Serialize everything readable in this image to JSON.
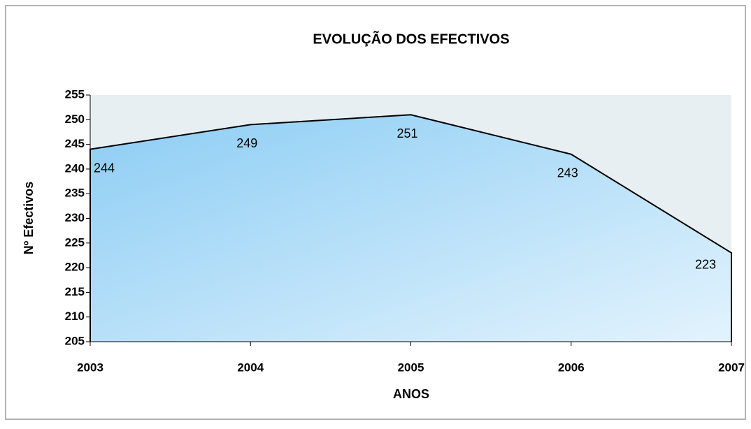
{
  "chart_data": {
    "type": "area",
    "title": "EVOLUÇÃO DOS EFECTIVOS",
    "x_label": "ANOS",
    "y_label": "Nº Efectivos",
    "categories": [
      "2003",
      "2004",
      "2005",
      "2006",
      "2007"
    ],
    "values": [
      244,
      249,
      251,
      243,
      223
    ],
    "color": "#9fd6f7",
    "line_color": "#000000",
    "ylim": [
      205,
      255
    ],
    "yticks": [
      205,
      210,
      215,
      220,
      225,
      230,
      235,
      240,
      245,
      250,
      255
    ],
    "grid": false
  }
}
